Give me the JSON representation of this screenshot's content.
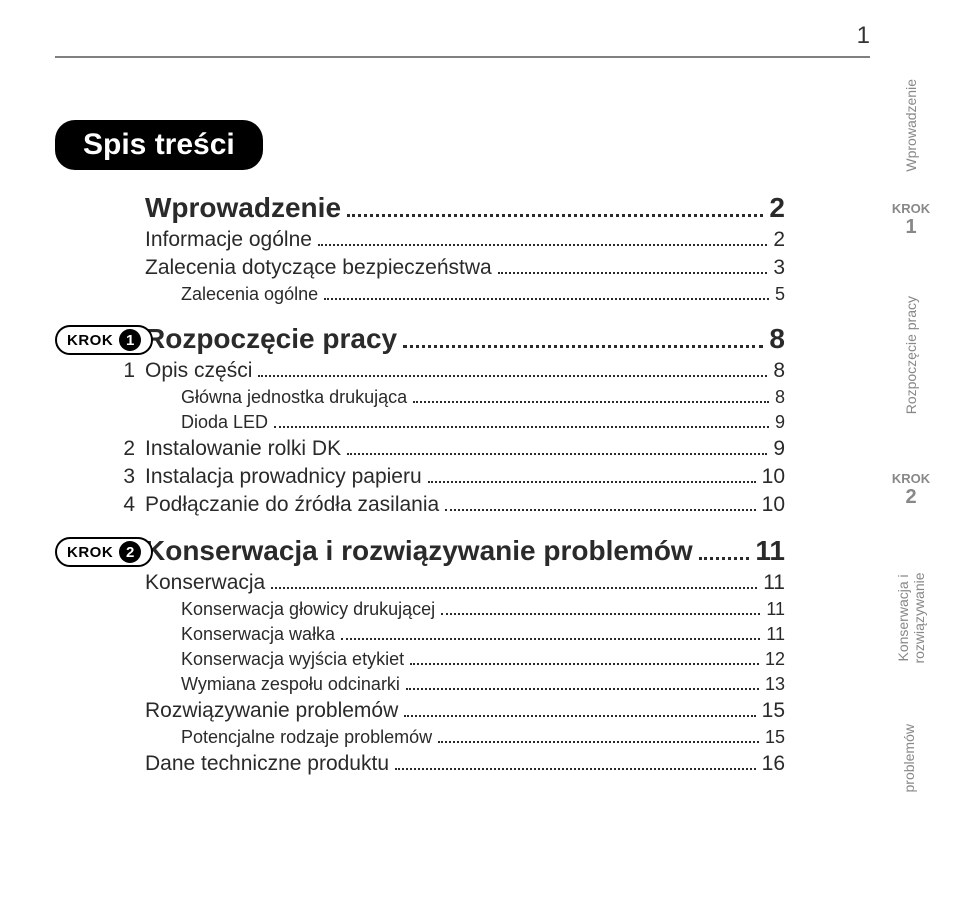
{
  "pageNumber": "1",
  "title": "Spis treści",
  "stepBadge": {
    "label": "KROK"
  },
  "toc": {
    "intro": {
      "title": "Wprowadzenie",
      "page": "2",
      "items": [
        {
          "label": "Informacje ogólne",
          "page": "2"
        },
        {
          "label": "Zalecenia dotyczące bezpieczeństwa",
          "page": "3"
        }
      ],
      "sub": [
        {
          "label": "Zalecenia ogólne",
          "page": "5"
        }
      ]
    },
    "step1": {
      "badgeNum": "1",
      "title": "Rozpoczęcie pracy",
      "page": "8",
      "items": [
        {
          "num": "1",
          "label": "Opis części",
          "page": "8",
          "sub": [
            {
              "label": "Główna jednostka drukująca",
              "page": "8"
            },
            {
              "label": "Dioda LED",
              "page": "9"
            }
          ]
        },
        {
          "num": "2",
          "label": "Instalowanie rolki DK",
          "page": "9"
        },
        {
          "num": "3",
          "label": "Instalacja prowadnicy papieru",
          "page": "10"
        },
        {
          "num": "4",
          "label": "Podłączanie do źródła zasilania",
          "page": "10"
        }
      ]
    },
    "step2": {
      "badgeNum": "2",
      "title": "Konserwacja i rozwiązywanie problemów",
      "page": "11",
      "items": [
        {
          "label": "Konserwacja",
          "page": "11",
          "sub": [
            {
              "label": "Konserwacja głowicy drukującej",
              "page": "11"
            },
            {
              "label": "Konserwacja wałka",
              "page": "11"
            },
            {
              "label": "Konserwacja wyjścia etykiet",
              "page": "12"
            },
            {
              "label": "Wymiana zespołu odcinarki",
              "page": "13"
            }
          ]
        },
        {
          "label": "Rozwiązywanie problemów",
          "page": "15",
          "sub": [
            {
              "label": "Potencjalne rodzaje problemów",
              "page": "15"
            }
          ]
        },
        {
          "label": "Dane techniczne produktu",
          "page": "16"
        }
      ]
    }
  },
  "sideTabs": {
    "t1": "Wprowadzenie",
    "t2": {
      "label": "KROK",
      "num": "1"
    },
    "t3": "Rozpoczęcie pracy",
    "t4": {
      "label": "KROK",
      "num": "2"
    },
    "t5a": "Konserwacja i rozwiązywanie",
    "t5b": "problemów"
  }
}
